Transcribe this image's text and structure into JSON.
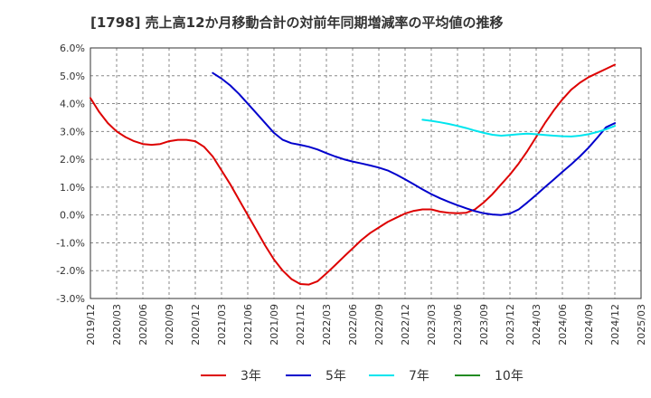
{
  "chart_data": {
    "type": "line",
    "title": "[1798]  売上高12か月移動合計の対前年同期増減率の平均値の推移",
    "xlabel": "",
    "ylabel": "",
    "ylim": [
      -3.0,
      6.0
    ],
    "yticks": [
      "6.0%",
      "5.0%",
      "4.0%",
      "3.0%",
      "2.0%",
      "1.0%",
      "0.0%",
      "-1.0%",
      "-2.0%",
      "-3.0%"
    ],
    "ytick_values": [
      6,
      5,
      4,
      3,
      2,
      1,
      0,
      -1,
      -2,
      -3
    ],
    "xticks": [
      "2019/12",
      "2020/03",
      "2020/06",
      "2020/09",
      "2020/12",
      "2021/03",
      "2021/06",
      "2021/09",
      "2021/12",
      "2022/03",
      "2022/06",
      "2022/09",
      "2022/12",
      "2023/03",
      "2023/06",
      "2023/09",
      "2023/12",
      "2024/03",
      "2024/06",
      "2024/09",
      "2024/12",
      "2025/03"
    ],
    "x_unit": "month index from 2019/12",
    "grid": true,
    "legend_position": "bottom",
    "series": [
      {
        "name": "3年",
        "color": "#dd0000",
        "x": [
          0,
          1,
          2,
          3,
          4,
          5,
          6,
          7,
          8,
          9,
          10,
          11,
          12,
          13,
          14,
          15,
          16,
          17,
          18,
          19,
          20,
          21,
          22,
          23,
          24,
          25,
          26,
          27,
          28,
          29,
          30,
          31,
          32,
          33,
          34,
          35,
          36,
          37,
          38,
          39,
          40,
          41,
          42,
          43,
          44,
          45,
          46,
          47,
          48,
          49,
          50,
          51,
          52,
          53,
          54,
          55,
          56,
          57,
          58,
          59,
          60
        ],
        "values": [
          4.2,
          3.7,
          3.3,
          3.0,
          2.8,
          2.65,
          2.55,
          2.52,
          2.55,
          2.65,
          2.7,
          2.7,
          2.65,
          2.45,
          2.1,
          1.6,
          1.1,
          0.55,
          0.0,
          -0.55,
          -1.1,
          -1.6,
          -2.0,
          -2.3,
          -2.48,
          -2.5,
          -2.38,
          -2.1,
          -1.8,
          -1.5,
          -1.2,
          -0.9,
          -0.65,
          -0.45,
          -0.25,
          -0.1,
          0.05,
          0.15,
          0.2,
          0.2,
          0.12,
          0.08,
          0.06,
          0.08,
          0.2,
          0.45,
          0.75,
          1.1,
          1.45,
          1.85,
          2.3,
          2.8,
          3.3,
          3.75,
          4.15,
          4.5,
          4.75,
          4.95,
          5.1,
          5.25,
          5.4
        ]
      },
      {
        "name": "5年",
        "color": "#0000cc",
        "x": [
          14,
          15,
          16,
          17,
          18,
          19,
          20,
          21,
          22,
          23,
          24,
          25,
          26,
          27,
          28,
          29,
          30,
          31,
          32,
          33,
          34,
          35,
          36,
          37,
          38,
          39,
          40,
          41,
          42,
          43,
          44,
          45,
          46,
          47,
          48,
          49,
          50,
          51,
          52,
          53,
          54,
          55,
          56,
          57,
          58,
          59,
          60
        ],
        "values": [
          5.1,
          4.9,
          4.65,
          4.35,
          4.0,
          3.65,
          3.3,
          2.95,
          2.7,
          2.58,
          2.52,
          2.45,
          2.35,
          2.22,
          2.1,
          2.0,
          1.92,
          1.85,
          1.78,
          1.7,
          1.6,
          1.45,
          1.28,
          1.1,
          0.92,
          0.75,
          0.6,
          0.47,
          0.35,
          0.24,
          0.14,
          0.06,
          0.02,
          0.0,
          0.05,
          0.2,
          0.45,
          0.72,
          1.0,
          1.27,
          1.55,
          1.82,
          2.1,
          2.42,
          2.78,
          3.15,
          3.3
        ]
      },
      {
        "name": "7年",
        "color": "#00e5ee",
        "x": [
          38,
          39,
          40,
          41,
          42,
          43,
          44,
          45,
          46,
          47,
          48,
          49,
          50,
          51,
          52,
          53,
          54,
          55,
          56,
          57,
          58,
          59,
          60
        ],
        "values": [
          3.42,
          3.38,
          3.33,
          3.27,
          3.2,
          3.12,
          3.03,
          2.95,
          2.88,
          2.85,
          2.87,
          2.9,
          2.92,
          2.9,
          2.87,
          2.85,
          2.83,
          2.82,
          2.85,
          2.9,
          2.98,
          3.08,
          3.2
        ]
      },
      {
        "name": "10年",
        "color": "#228b22",
        "x": [],
        "values": []
      }
    ]
  }
}
